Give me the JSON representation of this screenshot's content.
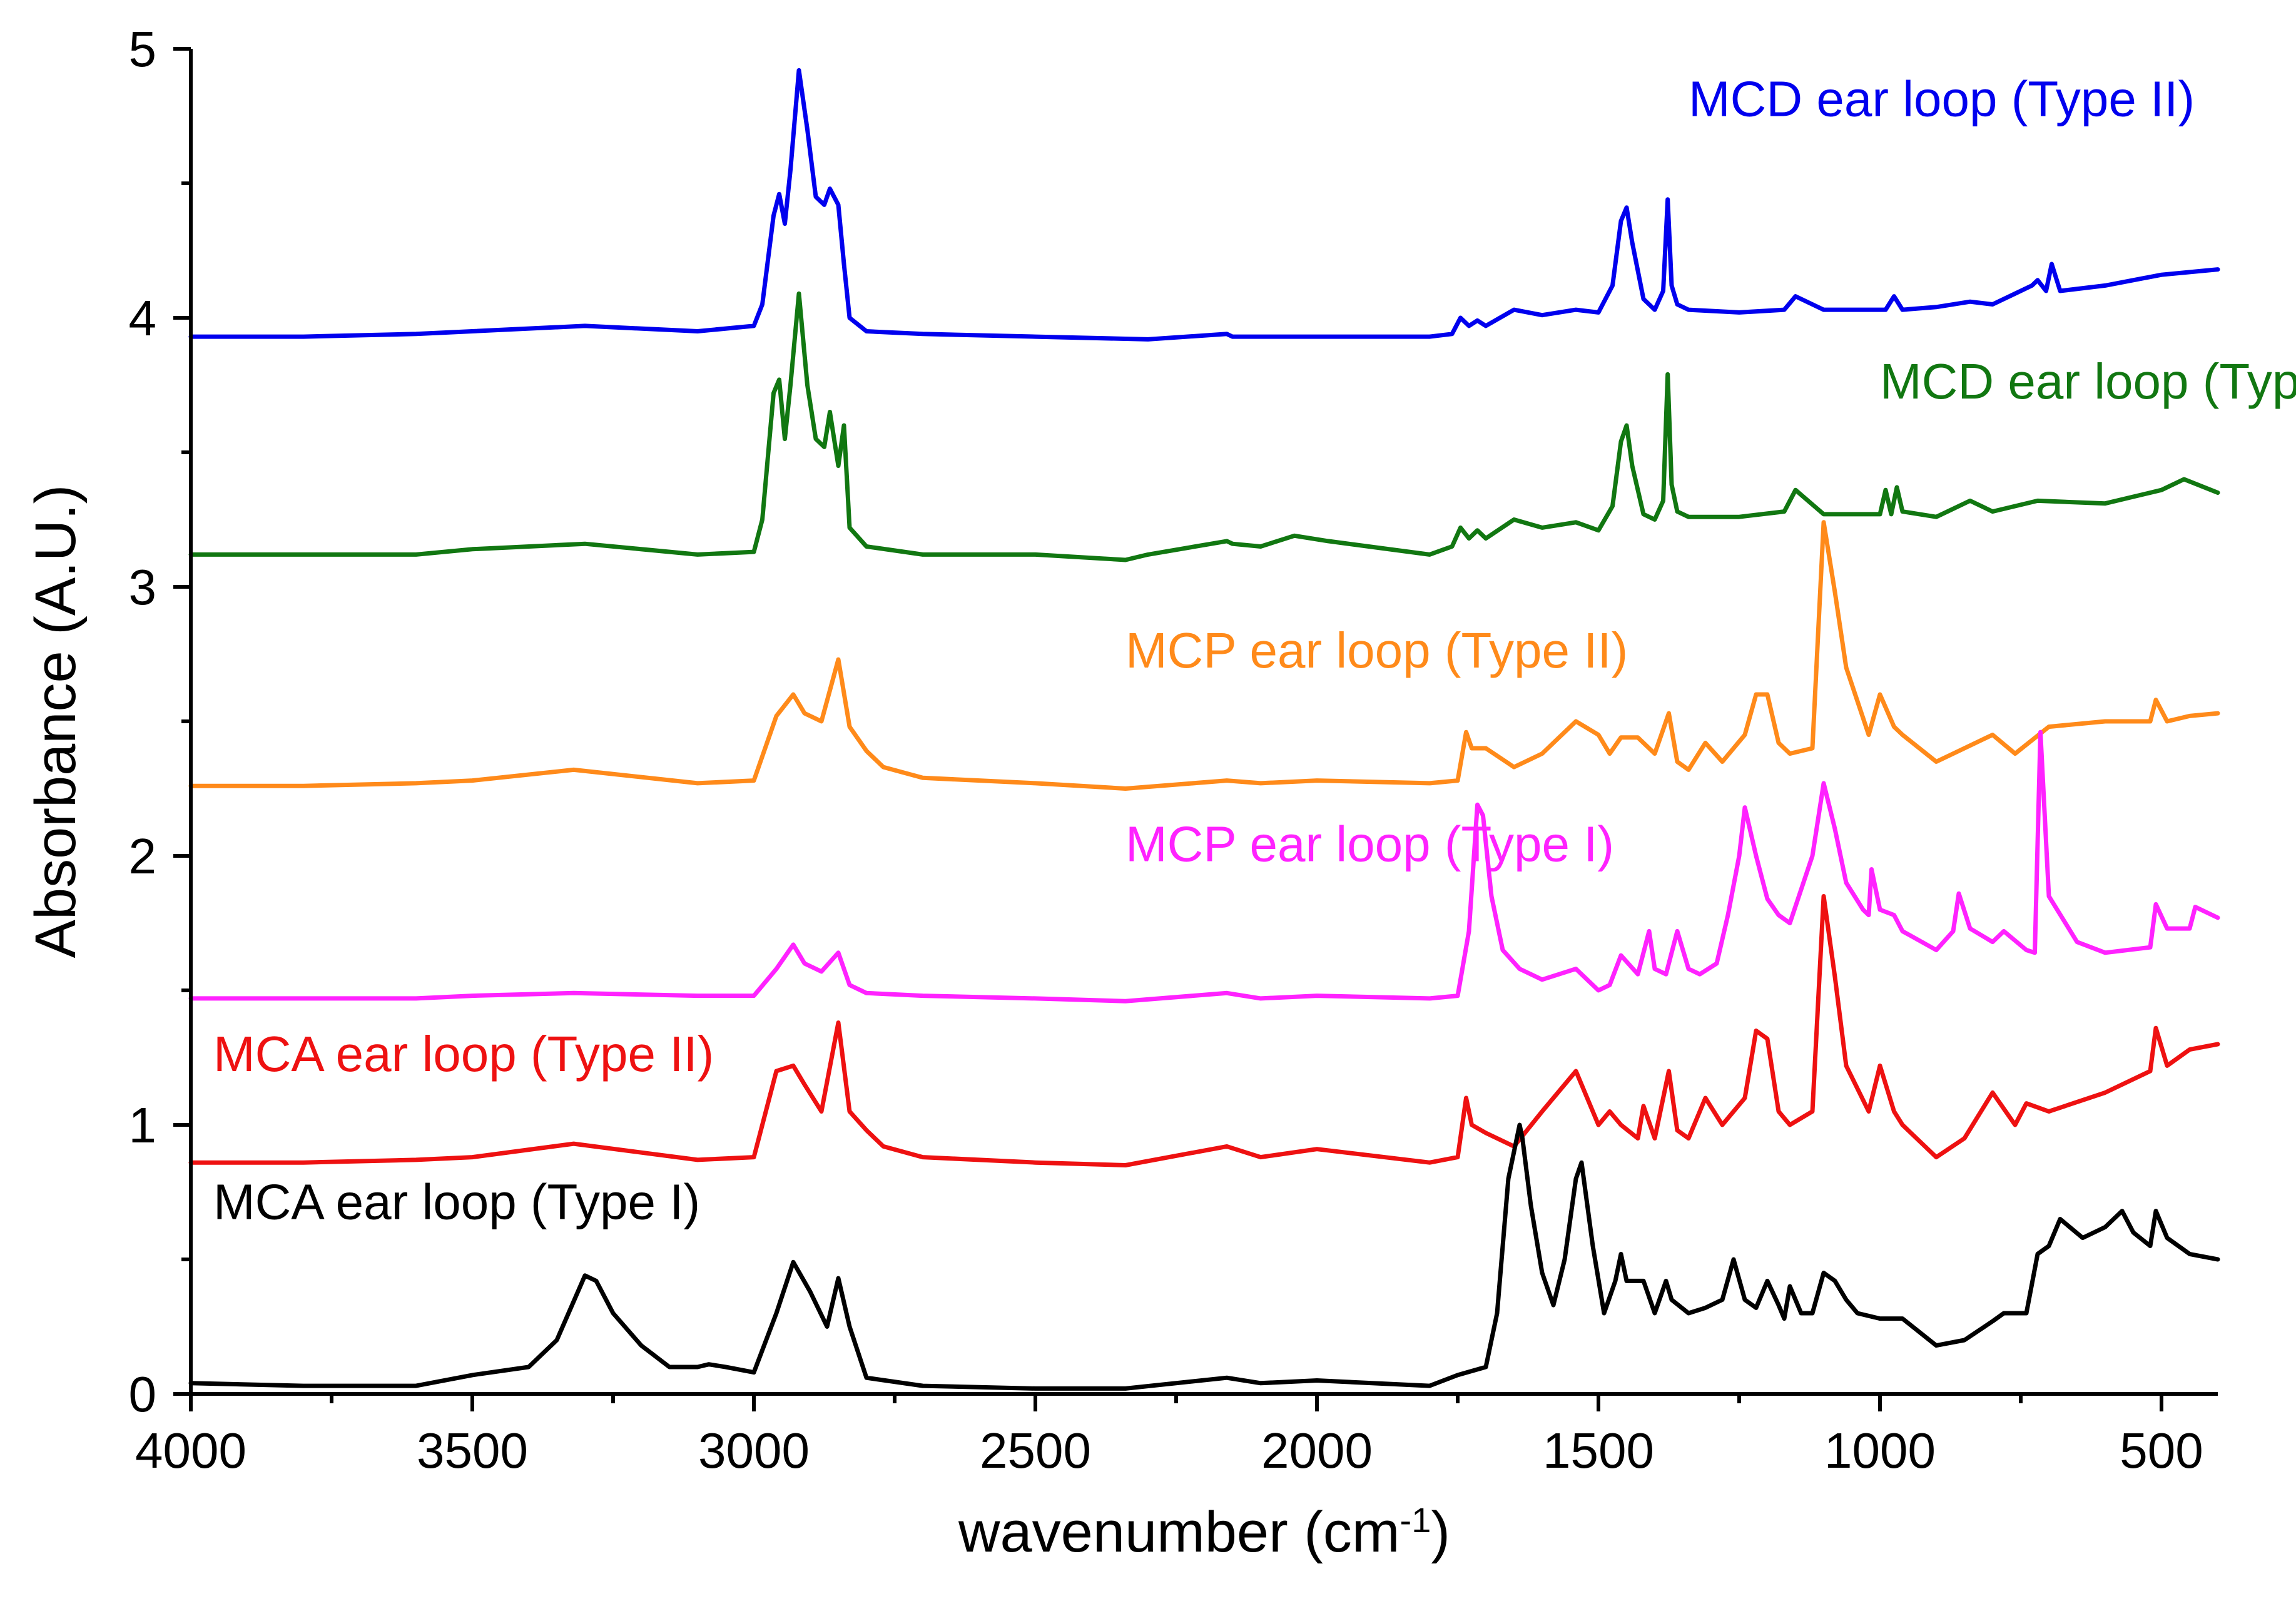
{
  "chart_data": {
    "type": "line",
    "xlabel": "wavenumber (cm",
    "xlabel_sup": "-1",
    "xlabel_end": ")",
    "ylabel": "Absorbance (A.U.)",
    "xlim": [
      4000,
      400
    ],
    "ylim": [
      0,
      5
    ],
    "x_reversed": true,
    "x_ticks": [
      4000,
      3500,
      3000,
      2500,
      2000,
      1500,
      1000,
      500
    ],
    "y_ticks": [
      0,
      1,
      2,
      3,
      4,
      5
    ],
    "grid": false,
    "series": [
      {
        "name": "MCD ear loop (Type II)",
        "color": "#0000ee",
        "label_x": 1340,
        "label_y": 4.75,
        "x": [
          4000,
          3800,
          3600,
          3500,
          3300,
          3100,
          3000,
          2985,
          2965,
          2955,
          2945,
          2935,
          2920,
          2905,
          2890,
          2875,
          2865,
          2850,
          2840,
          2830,
          2800,
          2700,
          2500,
          2300,
          2160,
          2150,
          2100,
          1950,
          1800,
          1760,
          1745,
          1730,
          1715,
          1700,
          1650,
          1600,
          1540,
          1500,
          1475,
          1460,
          1450,
          1440,
          1420,
          1400,
          1385,
          1377,
          1370,
          1360,
          1340,
          1250,
          1170,
          1150,
          1100,
          990,
          975,
          960,
          900,
          840,
          800,
          760,
          730,
          720,
          705,
          695,
          680,
          600,
          500,
          400
        ],
        "y": [
          3.93,
          3.93,
          3.94,
          3.95,
          3.97,
          3.95,
          3.97,
          4.05,
          4.38,
          4.46,
          4.35,
          4.55,
          4.92,
          4.7,
          4.45,
          4.42,
          4.48,
          4.42,
          4.2,
          4.0,
          3.95,
          3.94,
          3.93,
          3.92,
          3.94,
          3.93,
          3.93,
          3.93,
          3.93,
          3.94,
          4.0,
          3.97,
          3.99,
          3.97,
          4.03,
          4.01,
          4.03,
          4.02,
          4.12,
          4.36,
          4.41,
          4.28,
          4.07,
          4.03,
          4.1,
          4.44,
          4.12,
          4.05,
          4.03,
          4.02,
          4.03,
          4.08,
          4.03,
          4.03,
          4.08,
          4.03,
          4.04,
          4.06,
          4.05,
          4.09,
          4.12,
          4.14,
          4.1,
          4.2,
          4.1,
          4.12,
          4.16,
          4.18
        ]
      },
      {
        "name": "MCD ear loop (Type I)",
        "color": "#117711",
        "label_x": 1000,
        "label_y": 3.7,
        "x": [
          4000,
          3800,
          3600,
          3500,
          3300,
          3100,
          3000,
          2985,
          2965,
          2955,
          2945,
          2935,
          2920,
          2905,
          2890,
          2875,
          2865,
          2850,
          2840,
          2830,
          2800,
          2700,
          2500,
          2340,
          2300,
          2160,
          2150,
          2100,
          2040,
          1980,
          1800,
          1760,
          1745,
          1730,
          1715,
          1700,
          1650,
          1600,
          1540,
          1500,
          1475,
          1460,
          1450,
          1440,
          1420,
          1400,
          1385,
          1377,
          1370,
          1360,
          1340,
          1250,
          1170,
          1150,
          1100,
          1000,
          990,
          980,
          970,
          960,
          900,
          840,
          800,
          720,
          600,
          500,
          460,
          400
        ],
        "y": [
          3.12,
          3.12,
          3.12,
          3.14,
          3.16,
          3.12,
          3.13,
          3.25,
          3.72,
          3.77,
          3.55,
          3.75,
          4.09,
          3.75,
          3.55,
          3.52,
          3.65,
          3.45,
          3.6,
          3.22,
          3.15,
          3.12,
          3.12,
          3.1,
          3.12,
          3.17,
          3.16,
          3.15,
          3.19,
          3.17,
          3.12,
          3.15,
          3.22,
          3.18,
          3.21,
          3.18,
          3.25,
          3.22,
          3.24,
          3.21,
          3.3,
          3.54,
          3.6,
          3.45,
          3.27,
          3.25,
          3.32,
          3.79,
          3.38,
          3.28,
          3.26,
          3.26,
          3.28,
          3.36,
          3.27,
          3.27,
          3.36,
          3.27,
          3.37,
          3.28,
          3.26,
          3.32,
          3.28,
          3.32,
          3.31,
          3.36,
          3.4,
          3.35
        ]
      },
      {
        "name": "MCP ear loop (Type II)",
        "color": "#ff8a1a",
        "label_x": 2340,
        "label_y": 2.7,
        "x": [
          4000,
          3800,
          3600,
          3500,
          3320,
          3100,
          3000,
          2960,
          2930,
          2910,
          2880,
          2850,
          2830,
          2800,
          2770,
          2700,
          2500,
          2340,
          2160,
          2100,
          2000,
          1800,
          1750,
          1735,
          1725,
          1700,
          1650,
          1600,
          1540,
          1500,
          1480,
          1460,
          1430,
          1400,
          1375,
          1360,
          1340,
          1310,
          1280,
          1240,
          1220,
          1200,
          1180,
          1160,
          1120,
          1100,
          1080,
          1060,
          1020,
          1000,
          975,
          960,
          900,
          850,
          800,
          760,
          700,
          600,
          520,
          510,
          490,
          450,
          400
        ],
        "y": [
          2.26,
          2.26,
          2.27,
          2.28,
          2.32,
          2.27,
          2.28,
          2.52,
          2.6,
          2.53,
          2.5,
          2.73,
          2.48,
          2.39,
          2.33,
          2.29,
          2.27,
          2.25,
          2.28,
          2.27,
          2.28,
          2.27,
          2.28,
          2.46,
          2.4,
          2.4,
          2.33,
          2.38,
          2.5,
          2.45,
          2.38,
          2.44,
          2.44,
          2.38,
          2.53,
          2.35,
          2.32,
          2.42,
          2.35,
          2.45,
          2.6,
          2.6,
          2.42,
          2.38,
          2.4,
          3.24,
          2.98,
          2.7,
          2.45,
          2.6,
          2.48,
          2.45,
          2.35,
          2.4,
          2.45,
          2.38,
          2.48,
          2.5,
          2.5,
          2.58,
          2.5,
          2.52,
          2.53
        ]
      },
      {
        "name": "MCP ear loop (Type I)",
        "color": "#ff22ff",
        "label_x": 2340,
        "label_y": 1.98,
        "x": [
          4000,
          3800,
          3600,
          3500,
          3320,
          3100,
          3000,
          2960,
          2930,
          2910,
          2880,
          2850,
          2830,
          2800,
          2700,
          2500,
          2340,
          2160,
          2100,
          2000,
          1800,
          1750,
          1730,
          1715,
          1705,
          1690,
          1670,
          1640,
          1600,
          1540,
          1500,
          1480,
          1460,
          1430,
          1410,
          1400,
          1380,
          1360,
          1340,
          1320,
          1290,
          1270,
          1250,
          1240,
          1220,
          1200,
          1180,
          1160,
          1120,
          1100,
          1080,
          1060,
          1030,
          1020,
          1015,
          1000,
          975,
          960,
          900,
          870,
          860,
          840,
          800,
          780,
          740,
          725,
          715,
          700,
          650,
          600,
          520,
          510,
          490,
          450,
          440,
          400
        ],
        "y": [
          1.47,
          1.47,
          1.47,
          1.48,
          1.49,
          1.48,
          1.48,
          1.58,
          1.67,
          1.6,
          1.57,
          1.64,
          1.52,
          1.49,
          1.48,
          1.47,
          1.46,
          1.49,
          1.47,
          1.48,
          1.47,
          1.48,
          1.72,
          2.19,
          2.15,
          1.85,
          1.65,
          1.58,
          1.54,
          1.58,
          1.5,
          1.52,
          1.63,
          1.56,
          1.72,
          1.58,
          1.56,
          1.72,
          1.58,
          1.56,
          1.6,
          1.78,
          2.0,
          2.18,
          2.0,
          1.84,
          1.78,
          1.75,
          2.0,
          2.27,
          2.1,
          1.9,
          1.8,
          1.78,
          1.95,
          1.8,
          1.78,
          1.72,
          1.65,
          1.72,
          1.86,
          1.73,
          1.68,
          1.72,
          1.65,
          1.64,
          2.46,
          1.85,
          1.68,
          1.64,
          1.66,
          1.82,
          1.73,
          1.73,
          1.81,
          1.77
        ]
      },
      {
        "name": "MCA ear loop (Type II)",
        "color": "#ee1111",
        "label_x": 3960,
        "label_y": 1.2,
        "x": [
          4000,
          3800,
          3600,
          3500,
          3320,
          3100,
          3000,
          2960,
          2930,
          2910,
          2880,
          2850,
          2830,
          2800,
          2770,
          2700,
          2500,
          2340,
          2160,
          2100,
          2000,
          1800,
          1750,
          1735,
          1725,
          1700,
          1650,
          1600,
          1540,
          1500,
          1480,
          1460,
          1430,
          1420,
          1400,
          1375,
          1360,
          1340,
          1310,
          1280,
          1240,
          1220,
          1200,
          1180,
          1160,
          1120,
          1100,
          1080,
          1060,
          1020,
          1000,
          975,
          960,
          900,
          850,
          800,
          760,
          740,
          700,
          600,
          520,
          510,
          490,
          450,
          400
        ],
        "y": [
          0.86,
          0.86,
          0.87,
          0.88,
          0.93,
          0.87,
          0.88,
          1.2,
          1.22,
          1.15,
          1.05,
          1.38,
          1.05,
          0.98,
          0.92,
          0.88,
          0.86,
          0.85,
          0.92,
          0.88,
          0.91,
          0.86,
          0.88,
          1.1,
          1.0,
          0.97,
          0.92,
          1.05,
          1.2,
          1.0,
          1.05,
          1.0,
          0.95,
          1.07,
          0.95,
          1.2,
          0.98,
          0.95,
          1.1,
          1.0,
          1.1,
          1.35,
          1.32,
          1.05,
          1.0,
          1.05,
          1.85,
          1.55,
          1.22,
          1.05,
          1.22,
          1.05,
          1.0,
          0.88,
          0.95,
          1.12,
          1.0,
          1.08,
          1.05,
          1.12,
          1.2,
          1.36,
          1.22,
          1.28,
          1.3
        ]
      },
      {
        "name": "MCA ear loop (Type I)",
        "color": "#000000",
        "label_x": 3960,
        "label_y": 0.65,
        "x": [
          4000,
          3800,
          3600,
          3500,
          3400,
          3350,
          3300,
          3280,
          3250,
          3200,
          3150,
          3100,
          3080,
          3050,
          3000,
          2960,
          2930,
          2900,
          2870,
          2850,
          2830,
          2800,
          2700,
          2500,
          2340,
          2160,
          2100,
          2000,
          1800,
          1750,
          1700,
          1680,
          1660,
          1640,
          1635,
          1620,
          1600,
          1580,
          1560,
          1540,
          1530,
          1510,
          1490,
          1470,
          1460,
          1450,
          1420,
          1400,
          1380,
          1370,
          1340,
          1310,
          1280,
          1260,
          1240,
          1220,
          1200,
          1180,
          1170,
          1160,
          1140,
          1120,
          1100,
          1080,
          1060,
          1040,
          1000,
          960,
          900,
          850,
          800,
          780,
          740,
          720,
          700,
          680,
          640,
          600,
          570,
          550,
          520,
          510,
          490,
          450,
          400
        ],
        "y": [
          0.04,
          0.03,
          0.03,
          0.07,
          0.1,
          0.2,
          0.44,
          0.42,
          0.3,
          0.18,
          0.1,
          0.1,
          0.11,
          0.1,
          0.08,
          0.3,
          0.49,
          0.38,
          0.25,
          0.43,
          0.25,
          0.06,
          0.03,
          0.02,
          0.02,
          0.06,
          0.04,
          0.05,
          0.03,
          0.07,
          0.1,
          0.3,
          0.8,
          1.0,
          0.95,
          0.7,
          0.45,
          0.33,
          0.5,
          0.8,
          0.86,
          0.55,
          0.3,
          0.42,
          0.52,
          0.42,
          0.42,
          0.3,
          0.42,
          0.35,
          0.3,
          0.32,
          0.35,
          0.5,
          0.35,
          0.32,
          0.42,
          0.33,
          0.28,
          0.4,
          0.3,
          0.3,
          0.45,
          0.42,
          0.35,
          0.3,
          0.28,
          0.28,
          0.18,
          0.2,
          0.27,
          0.3,
          0.3,
          0.52,
          0.55,
          0.65,
          0.58,
          0.62,
          0.68,
          0.6,
          0.55,
          0.68,
          0.58,
          0.52,
          0.5
        ]
      }
    ]
  }
}
